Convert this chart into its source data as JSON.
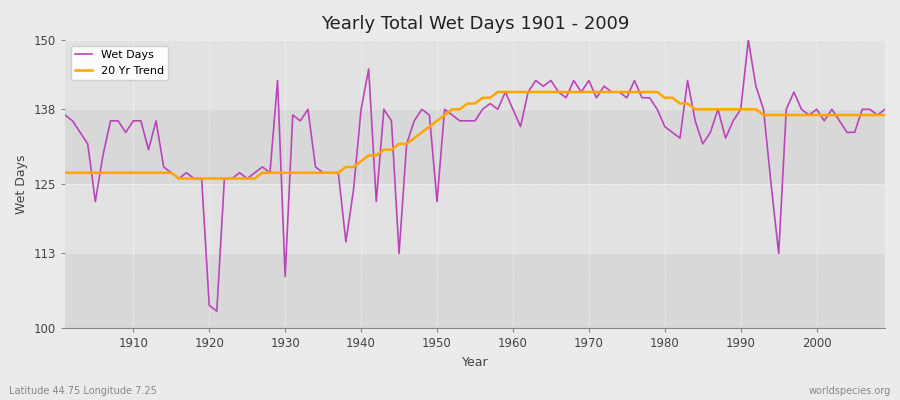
{
  "title": "Yearly Total Wet Days 1901 - 2009",
  "xlabel": "Year",
  "ylabel": "Wet Days",
  "xlim": [
    1901,
    2009
  ],
  "ylim": [
    100,
    150
  ],
  "yticks": [
    100,
    113,
    125,
    138,
    150
  ],
  "xticks": [
    1910,
    1920,
    1930,
    1940,
    1950,
    1960,
    1970,
    1980,
    1990,
    2000
  ],
  "wet_days_color": "#BB44BB",
  "trend_color": "#FFA500",
  "bg_color": "#EBEBEB",
  "plot_bg_color": "#E0E0E0",
  "legend_labels": [
    "Wet Days",
    "20 Yr Trend"
  ],
  "subtitle": "Latitude 44.75 Longitude 7.25",
  "watermark": "worldspecies.org",
  "band_colors": [
    "#DCDCDC",
    "#E8E8E8"
  ],
  "wet_days": [
    137,
    136,
    134,
    132,
    122,
    130,
    136,
    136,
    134,
    136,
    136,
    131,
    136,
    128,
    127,
    126,
    127,
    126,
    126,
    104,
    103,
    126,
    126,
    127,
    126,
    127,
    128,
    127,
    143,
    109,
    137,
    136,
    138,
    128,
    127,
    127,
    127,
    115,
    124,
    138,
    145,
    122,
    138,
    136,
    113,
    132,
    136,
    138,
    137,
    122,
    138,
    137,
    136,
    136,
    136,
    138,
    139,
    138,
    141,
    138,
    135,
    141,
    143,
    142,
    143,
    141,
    140,
    143,
    141,
    143,
    140,
    142,
    141,
    141,
    140,
    143,
    140,
    140,
    138,
    135,
    134,
    133,
    143,
    136,
    132,
    134,
    138,
    133,
    136,
    138,
    150,
    142,
    138,
    125,
    113,
    138,
    141,
    138,
    137,
    138,
    136,
    138,
    136,
    134,
    134,
    138,
    138,
    137,
    138
  ],
  "trend": [
    127,
    127,
    127,
    127,
    127,
    127,
    127,
    127,
    127,
    127,
    127,
    127,
    127,
    127,
    127,
    126,
    126,
    126,
    126,
    126,
    126,
    126,
    126,
    126,
    126,
    126,
    127,
    127,
    127,
    127,
    127,
    127,
    127,
    127,
    127,
    127,
    127,
    128,
    128,
    129,
    130,
    130,
    131,
    131,
    132,
    132,
    133,
    134,
    135,
    136,
    137,
    138,
    138,
    139,
    139,
    140,
    140,
    141,
    141,
    141,
    141,
    141,
    141,
    141,
    141,
    141,
    141,
    141,
    141,
    141,
    141,
    141,
    141,
    141,
    141,
    141,
    141,
    141,
    141,
    140,
    140,
    139,
    139,
    138,
    138,
    138,
    138,
    138,
    138,
    138,
    138,
    138,
    137,
    137,
    137,
    137,
    137,
    137,
    137,
    137,
    137,
    137,
    137,
    137,
    137,
    137,
    137,
    137,
    137
  ]
}
